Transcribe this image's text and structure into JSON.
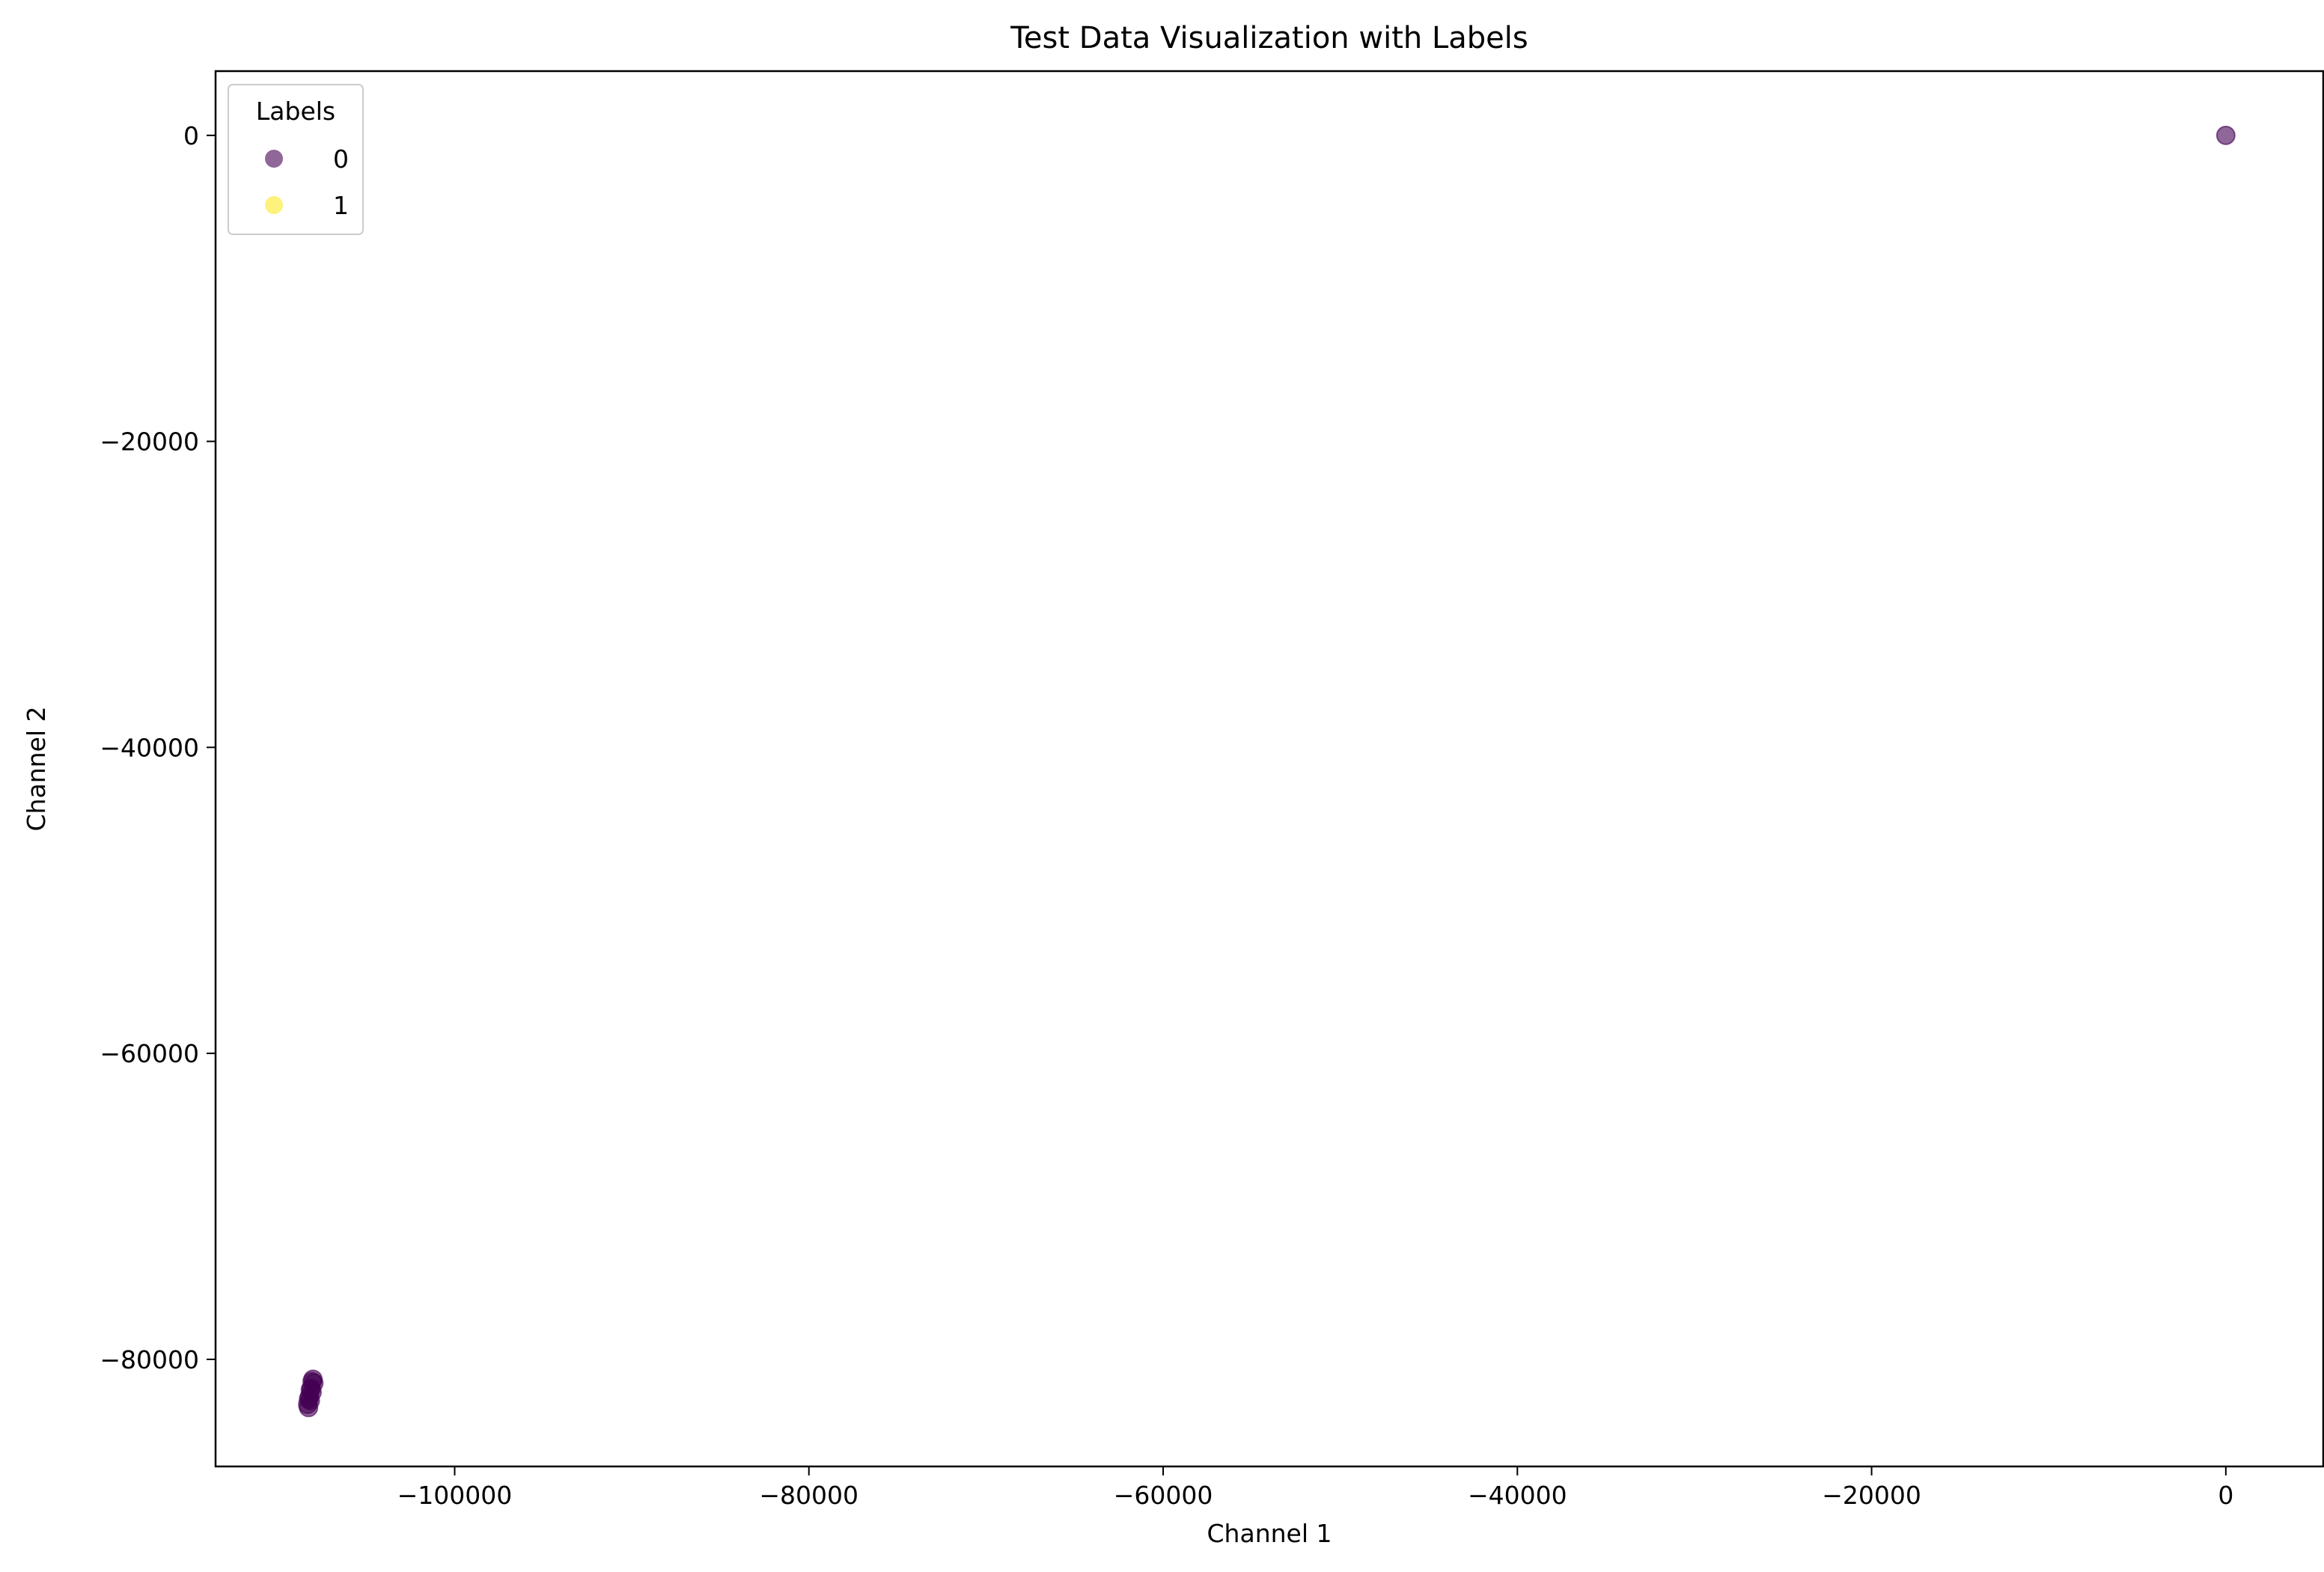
{
  "chart_data": {
    "type": "scatter",
    "title": "Test Data Visualization with Labels",
    "xlabel": "Channel 1",
    "ylabel": "Channel 2",
    "xlim": [
      -113500,
      5500
    ],
    "ylim": [
      -87000,
      4200
    ],
    "xticks": [
      -100000,
      -80000,
      -60000,
      -40000,
      -20000,
      0
    ],
    "xtick_labels": [
      "−100000",
      "−80000",
      "−60000",
      "−40000",
      "−20000",
      "0"
    ],
    "yticks": [
      0,
      -20000,
      -40000,
      -60000,
      -80000
    ],
    "ytick_labels": [
      "0",
      "−20000",
      "−40000",
      "−60000",
      "−80000"
    ],
    "grid": false,
    "legend": {
      "title": "Labels",
      "placement": "top-left",
      "entries": [
        {
          "label": "0",
          "color": "#440154"
        },
        {
          "label": "1",
          "color": "#fde725"
        }
      ]
    },
    "series": [
      {
        "name": "0",
        "color": "#440154",
        "alpha": 0.6,
        "points": [
          {
            "x": 0,
            "y": 0
          },
          {
            "x": -108000,
            "y": -81300
          },
          {
            "x": -107950,
            "y": -81550
          },
          {
            "x": -108100,
            "y": -81900
          },
          {
            "x": -108050,
            "y": -82150
          },
          {
            "x": -108200,
            "y": -82450
          },
          {
            "x": -108150,
            "y": -82700
          },
          {
            "x": -108300,
            "y": -82950
          },
          {
            "x": -108250,
            "y": -83150
          },
          {
            "x": -108050,
            "y": -81450
          },
          {
            "x": -108150,
            "y": -82000
          },
          {
            "x": -108250,
            "y": -82600
          }
        ]
      }
    ]
  }
}
